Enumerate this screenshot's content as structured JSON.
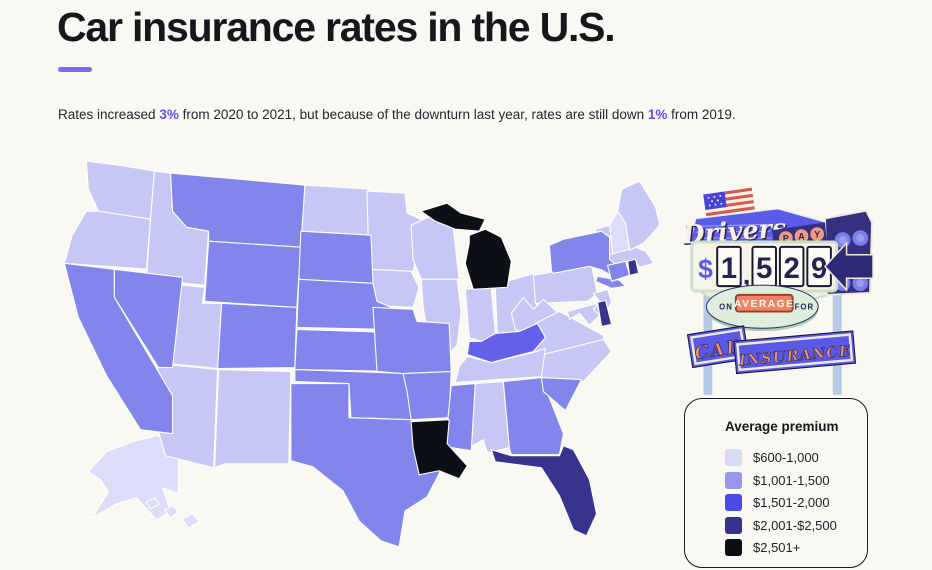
{
  "page": {
    "background": "#faf8f2",
    "accent_color": "#756bf3"
  },
  "header": {
    "title": "Car insurance rates in the U.S.",
    "subtitle": {
      "s1": "Rates increased ",
      "pct1": "3%",
      "s2": " from 2020 to 2021, but because of the downturn last year, rates are still down ",
      "pct2": "1%",
      "s3": " from 2019."
    }
  },
  "sign": {
    "drivers": "Drivers",
    "pay_letters": [
      "P",
      "A",
      "Y"
    ],
    "currency": "$",
    "digits": [
      "1",
      "5",
      "2",
      "9"
    ],
    "comma": ",",
    "amount": "$1,529",
    "on_label": "ON",
    "average_label": "AVERAGE",
    "for_label": "FOR",
    "car_label": "CAR",
    "insurance_label": "INSURANCE"
  },
  "chart_data": {
    "type": "choropleth",
    "region": "United States",
    "title": "Car insurance rates in the U.S.",
    "national_average_premium": "$1,529",
    "legend": {
      "title": "Average premium",
      "position": "bottom-right",
      "items": [
        {
          "label": "$600-1,000",
          "color": "#d9daf6"
        },
        {
          "label": "$1,001-1,500",
          "color": "#9697ee"
        },
        {
          "label": "$1,501-2,000",
          "color": "#4c49e8"
        },
        {
          "label": "$2,001-$2,500",
          "color": "#36338c"
        },
        {
          "label": "$2,501+",
          "color": "#0b0f14"
        }
      ]
    },
    "category_fills": [
      "#dcddf9",
      "#c6c7f4",
      "#8285ec",
      "#37348e",
      "#0c0f15"
    ],
    "fill_overrides": {
      "KY": "#6360ea"
    },
    "stroke_color": "#ffffff",
    "states": [
      {
        "abbr": "AK",
        "name": "Alaska",
        "category": 0
      },
      {
        "abbr": "HI",
        "name": "Hawaii",
        "category": 0
      },
      {
        "abbr": "NH",
        "name": "New Hampshire",
        "category": 0
      },
      {
        "abbr": "WA",
        "name": "Washington",
        "category": 1
      },
      {
        "abbr": "OR",
        "name": "Oregon",
        "category": 1
      },
      {
        "abbr": "ID",
        "name": "Idaho",
        "category": 1
      },
      {
        "abbr": "UT",
        "name": "Utah",
        "category": 1
      },
      {
        "abbr": "AZ",
        "name": "Arizona",
        "category": 1
      },
      {
        "abbr": "NM",
        "name": "New Mexico",
        "category": 1
      },
      {
        "abbr": "ND",
        "name": "North Dakota",
        "category": 1
      },
      {
        "abbr": "MN",
        "name": "Minnesota",
        "category": 1
      },
      {
        "abbr": "IA",
        "name": "Iowa",
        "category": 1
      },
      {
        "abbr": "WI",
        "name": "Wisconsin",
        "category": 1
      },
      {
        "abbr": "IL",
        "name": "Illinois",
        "category": 1
      },
      {
        "abbr": "IN",
        "name": "Indiana",
        "category": 1
      },
      {
        "abbr": "OH",
        "name": "Ohio",
        "category": 1
      },
      {
        "abbr": "PA",
        "name": "Pennsylvania",
        "category": 1
      },
      {
        "abbr": "WV",
        "name": "West Virginia",
        "category": 1
      },
      {
        "abbr": "VA",
        "name": "Virginia",
        "category": 1
      },
      {
        "abbr": "MD",
        "name": "Maryland",
        "category": 1
      },
      {
        "abbr": "NC",
        "name": "North Carolina",
        "category": 1
      },
      {
        "abbr": "TN",
        "name": "Tennessee",
        "category": 1
      },
      {
        "abbr": "AL",
        "name": "Alabama",
        "category": 1
      },
      {
        "abbr": "VT",
        "name": "Vermont",
        "category": 1
      },
      {
        "abbr": "MA",
        "name": "Massachusetts",
        "category": 1
      },
      {
        "abbr": "ME",
        "name": "Maine",
        "category": 1
      },
      {
        "abbr": "NJ",
        "name": "New Jersey",
        "category": 1
      },
      {
        "abbr": "MT",
        "name": "Montana",
        "category": 2
      },
      {
        "abbr": "WY",
        "name": "Wyoming",
        "category": 2
      },
      {
        "abbr": "CA",
        "name": "California",
        "category": 2
      },
      {
        "abbr": "NV",
        "name": "Nevada",
        "category": 2
      },
      {
        "abbr": "CO",
        "name": "Colorado",
        "category": 2
      },
      {
        "abbr": "SD",
        "name": "South Dakota",
        "category": 2
      },
      {
        "abbr": "NE",
        "name": "Nebraska",
        "category": 2
      },
      {
        "abbr": "KS",
        "name": "Kansas",
        "category": 2
      },
      {
        "abbr": "OK",
        "name": "Oklahoma",
        "category": 2
      },
      {
        "abbr": "TX",
        "name": "Texas",
        "category": 2
      },
      {
        "abbr": "MO",
        "name": "Missouri",
        "category": 2
      },
      {
        "abbr": "AR",
        "name": "Arkansas",
        "category": 2
      },
      {
        "abbr": "MS",
        "name": "Mississippi",
        "category": 2
      },
      {
        "abbr": "GA",
        "name": "Georgia",
        "category": 2
      },
      {
        "abbr": "SC",
        "name": "South Carolina",
        "category": 2
      },
      {
        "abbr": "KY",
        "name": "Kentucky",
        "category": 2
      },
      {
        "abbr": "NY",
        "name": "New York",
        "category": 2
      },
      {
        "abbr": "CT",
        "name": "Connecticut",
        "category": 2
      },
      {
        "abbr": "FL",
        "name": "Florida",
        "category": 3
      },
      {
        "abbr": "DE",
        "name": "Delaware",
        "category": 3
      },
      {
        "abbr": "RI",
        "name": "Rhode Island",
        "category": 3
      },
      {
        "abbr": "MI",
        "name": "Michigan",
        "category": 4
      },
      {
        "abbr": "LA",
        "name": "Louisiana",
        "category": 4
      }
    ]
  }
}
